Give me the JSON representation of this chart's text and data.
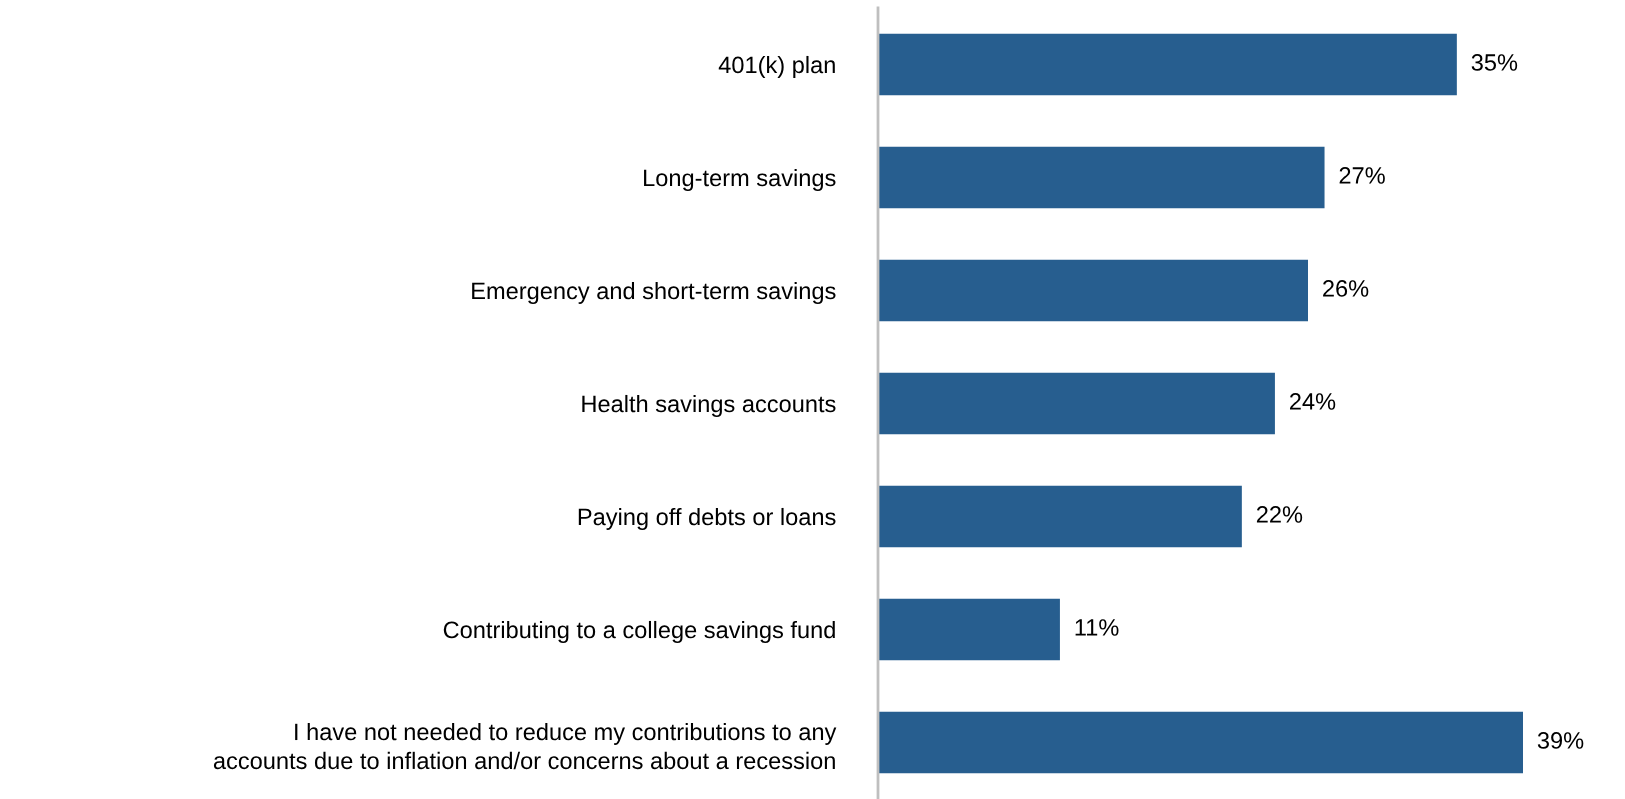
{
  "chart_data": {
    "type": "bar",
    "orientation": "horizontal",
    "color": "#275e8f",
    "grid": false,
    "legend": false,
    "tick_labels": "y",
    "categories": [
      "401(k) plan",
      "Long-term savings",
      "Emergency and short-term savings",
      "Health savings accounts",
      "Paying off debts or loans",
      "Contributing to a college savings fund",
      "I have not needed to reduce my contributions to any\naccounts due to inflation and/or concerns about a recession"
    ],
    "values": [
      35,
      27,
      26,
      24,
      22,
      11,
      39
    ],
    "value_labels": [
      "35%",
      "27%",
      "26%",
      "24%",
      "22%",
      "11%",
      "39%"
    ]
  }
}
